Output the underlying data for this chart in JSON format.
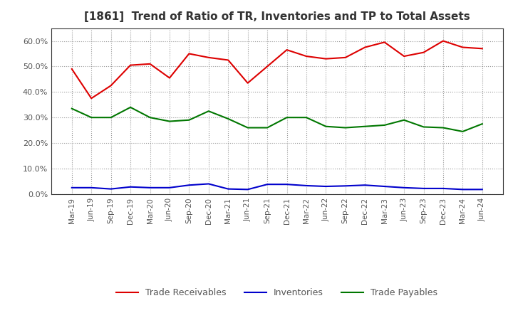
{
  "title": "[1861]  Trend of Ratio of TR, Inventories and TP to Total Assets",
  "x_labels": [
    "Mar-19",
    "Jun-19",
    "Sep-19",
    "Dec-19",
    "Mar-20",
    "Jun-20",
    "Sep-20",
    "Dec-20",
    "Mar-21",
    "Jun-21",
    "Sep-21",
    "Dec-21",
    "Mar-22",
    "Jun-22",
    "Sep-22",
    "Dec-22",
    "Mar-23",
    "Jun-23",
    "Sep-23",
    "Dec-23",
    "Mar-24",
    "Jun-24"
  ],
  "trade_receivables": [
    0.49,
    0.375,
    0.425,
    0.505,
    0.51,
    0.455,
    0.55,
    0.535,
    0.525,
    0.435,
    0.5,
    0.565,
    0.54,
    0.53,
    0.535,
    0.575,
    0.595,
    0.54,
    0.555,
    0.6,
    0.575,
    0.57
  ],
  "inventories": [
    0.025,
    0.025,
    0.02,
    0.028,
    0.025,
    0.025,
    0.035,
    0.04,
    0.02,
    0.018,
    0.038,
    0.038,
    0.033,
    0.03,
    0.032,
    0.035,
    0.03,
    0.025,
    0.022,
    0.022,
    0.018,
    0.018
  ],
  "trade_payables": [
    0.335,
    0.3,
    0.3,
    0.34,
    0.3,
    0.285,
    0.29,
    0.325,
    0.295,
    0.26,
    0.26,
    0.3,
    0.3,
    0.265,
    0.26,
    0.265,
    0.27,
    0.29,
    0.263,
    0.26,
    0.245,
    0.275
  ],
  "tr_color": "#dd0000",
  "inv_color": "#0000cc",
  "tp_color": "#007700",
  "background_color": "#ffffff",
  "grid_color": "#999999",
  "title_color": "#333333",
  "tick_color": "#555555",
  "ylim": [
    0.0,
    0.65
  ],
  "yticks": [
    0.0,
    0.1,
    0.2,
    0.3,
    0.4,
    0.5,
    0.6
  ]
}
